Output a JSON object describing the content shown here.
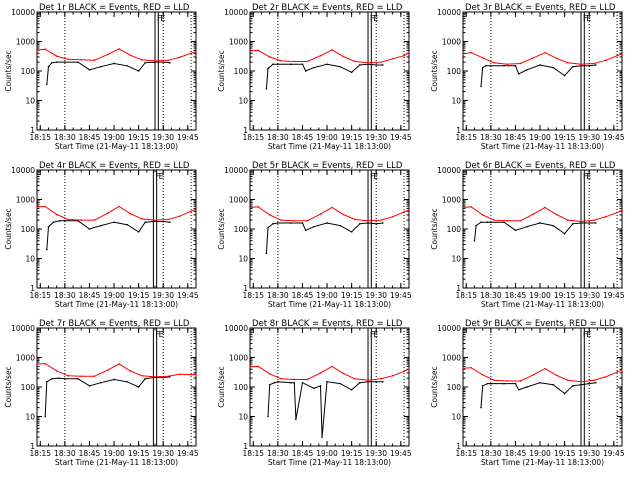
{
  "figure": {
    "x_tick_labels": [
      "18:15",
      "18:30",
      "18:45",
      "19:00",
      "19:15",
      "19:30",
      "19:45"
    ],
    "y_tick_labels": [
      "1",
      "10",
      "100",
      "1000",
      "10000"
    ],
    "ylabel": "Counts/sec",
    "xlabel": "Start Time (21-May-11 18:13:00)",
    "flag_labels": [
      "F",
      "E"
    ]
  },
  "colors": {
    "events": "#000000",
    "lld": "#ff0000",
    "axes": "#000000",
    "background": "#ffffff"
  },
  "chart_data": [
    {
      "type": "line",
      "title": "Det 1r BLACK = Events, RED = LLD",
      "xlabel": "Start Time (21-May-11 18:13:00)",
      "ylabel": "Counts/sec",
      "yscale": "log",
      "xlim": [
        "18:13",
        "19:50"
      ],
      "ylim": [
        1,
        10000
      ],
      "grid": false,
      "markers": {
        "dotted_vertical_lines": [
          "18:30",
          "19:30",
          "19:47"
        ],
        "flag_lines": [
          "19:25",
          "19:27"
        ]
      },
      "series": [
        {
          "name": "Events",
          "x": [
            "18:19",
            "18:20",
            "18:22",
            "18:25",
            "18:30",
            "18:38",
            "18:45",
            "18:52",
            "19:00",
            "19:08",
            "19:15",
            "19:19",
            "19:25",
            "19:30",
            "19:34"
          ],
          "values": [
            35,
            140,
            190,
            200,
            200,
            200,
            110,
            140,
            180,
            150,
            100,
            190,
            200,
            200,
            190
          ]
        },
        {
          "name": "LLD",
          "x": [
            "18:13",
            "18:18",
            "18:25",
            "18:32",
            "18:40",
            "18:48",
            "18:56",
            "19:03",
            "19:10",
            "19:17",
            "19:25",
            "19:33",
            "19:40",
            "19:47",
            "19:50"
          ],
          "values": [
            510,
            550,
            320,
            250,
            240,
            230,
            360,
            560,
            340,
            240,
            220,
            230,
            290,
            400,
            450
          ]
        }
      ]
    },
    {
      "type": "line",
      "title": "Det 2r BLACK = Events, RED = LLD",
      "xlabel": "Start Time (21-May-11 18:13:00)",
      "ylabel": "Counts/sec",
      "yscale": "log",
      "xlim": [
        "18:13",
        "19:50"
      ],
      "ylim": [
        1,
        10000
      ],
      "grid": false,
      "markers": {
        "dotted_vertical_lines": [
          "18:30",
          "19:30",
          "19:47"
        ],
        "flag_lines": [
          "19:25",
          "19:27"
        ]
      },
      "series": [
        {
          "name": "Events",
          "x": [
            "18:23",
            "18:24",
            "18:27",
            "18:30",
            "18:38",
            "18:45",
            "18:47",
            "18:52",
            "19:00",
            "19:08",
            "19:15",
            "19:20",
            "19:25",
            "19:30",
            "19:34"
          ],
          "values": [
            25,
            120,
            170,
            170,
            170,
            170,
            100,
            130,
            170,
            140,
            90,
            160,
            170,
            160,
            160
          ]
        },
        {
          "name": "LLD",
          "x": [
            "18:13",
            "18:18",
            "18:25",
            "18:32",
            "18:40",
            "18:48",
            "18:56",
            "19:03",
            "19:10",
            "19:17",
            "19:25",
            "19:33",
            "19:40",
            "19:47",
            "19:50"
          ],
          "values": [
            480,
            500,
            300,
            220,
            210,
            210,
            330,
            520,
            310,
            210,
            190,
            200,
            260,
            330,
            420
          ]
        }
      ]
    },
    {
      "type": "line",
      "title": "Det 3r BLACK = Events, RED = LLD",
      "xlabel": "Start Time (21-May-11 18:13:00)",
      "ylabel": "Counts/sec",
      "yscale": "log",
      "xlim": [
        "18:13",
        "19:50"
      ],
      "ylim": [
        1,
        10000
      ],
      "grid": false,
      "markers": {
        "dotted_vertical_lines": [
          "18:30",
          "19:30",
          "19:47"
        ],
        "flag_lines": [
          "19:25",
          "19:27"
        ]
      },
      "series": [
        {
          "name": "Events",
          "x": [
            "18:24",
            "18:25",
            "18:27",
            "18:30",
            "18:38",
            "18:45",
            "18:47",
            "18:52",
            "19:00",
            "19:08",
            "19:15",
            "19:20",
            "19:25",
            "19:30",
            "19:34"
          ],
          "values": [
            30,
            130,
            150,
            150,
            150,
            150,
            80,
            110,
            160,
            130,
            70,
            140,
            150,
            150,
            160
          ]
        },
        {
          "name": "LLD",
          "x": [
            "18:13",
            "18:18",
            "18:25",
            "18:32",
            "18:40",
            "18:48",
            "18:56",
            "19:03",
            "19:10",
            "19:17",
            "19:25",
            "19:33",
            "19:40",
            "19:47",
            "19:50"
          ],
          "values": [
            380,
            420,
            280,
            190,
            170,
            180,
            280,
            420,
            270,
            190,
            170,
            180,
            230,
            330,
            380
          ]
        }
      ]
    },
    {
      "type": "line",
      "title": "Det 4r BLACK = Events, RED = LLD",
      "xlabel": "Start Time (21-May-11 18:13:00)",
      "ylabel": "Counts/sec",
      "yscale": "log",
      "xlim": [
        "18:13",
        "19:50"
      ],
      "ylim": [
        1,
        10000
      ],
      "grid": false,
      "markers": {
        "dotted_vertical_lines": [
          "18:30",
          "19:30",
          "19:47"
        ],
        "flag_lines": [
          "19:24",
          "19:26"
        ]
      },
      "series": [
        {
          "name": "Events",
          "x": [
            "18:19",
            "18:20",
            "18:23",
            "18:27",
            "18:30",
            "18:38",
            "18:45",
            "18:52",
            "19:00",
            "19:08",
            "19:15",
            "19:19",
            "19:24",
            "19:30",
            "19:34"
          ],
          "values": [
            20,
            120,
            170,
            190,
            190,
            190,
            100,
            130,
            170,
            140,
            80,
            170,
            180,
            180,
            170
          ]
        },
        {
          "name": "LLD",
          "x": [
            "18:13",
            "18:18",
            "18:25",
            "18:32",
            "18:40",
            "18:48",
            "18:56",
            "19:03",
            "19:10",
            "19:17",
            "19:25",
            "19:33",
            "19:40",
            "19:47",
            "19:50"
          ],
          "values": [
            560,
            580,
            310,
            210,
            200,
            200,
            340,
            580,
            330,
            220,
            200,
            210,
            270,
            400,
            460
          ]
        }
      ]
    },
    {
      "type": "line",
      "title": "Det 5r BLACK = Events, RED = LLD",
      "xlabel": "Start Time (21-May-11 18:13:00)",
      "ylabel": "Counts/sec",
      "yscale": "log",
      "xlim": [
        "18:13",
        "19:50"
      ],
      "ylim": [
        1,
        10000
      ],
      "grid": false,
      "markers": {
        "dotted_vertical_lines": [
          "18:30",
          "19:30",
          "19:47"
        ],
        "flag_lines": [
          "19:25",
          "19:27"
        ]
      },
      "series": [
        {
          "name": "Events",
          "x": [
            "18:23",
            "18:24",
            "18:27",
            "18:30",
            "18:38",
            "18:45",
            "18:47",
            "18:52",
            "19:00",
            "19:08",
            "19:15",
            "19:20",
            "19:25",
            "19:30",
            "19:34"
          ],
          "values": [
            15,
            110,
            150,
            160,
            160,
            160,
            90,
            120,
            160,
            130,
            80,
            150,
            160,
            150,
            160
          ]
        },
        {
          "name": "LLD",
          "x": [
            "18:13",
            "18:18",
            "18:25",
            "18:32",
            "18:40",
            "18:48",
            "18:56",
            "19:03",
            "19:10",
            "19:17",
            "19:25",
            "19:33",
            "19:40",
            "19:47",
            "19:50"
          ],
          "values": [
            540,
            560,
            300,
            200,
            190,
            190,
            320,
            540,
            310,
            210,
            190,
            200,
            260,
            380,
            440
          ]
        }
      ]
    },
    {
      "type": "line",
      "title": "Det 6r BLACK = Events, RED = LLD",
      "xlabel": "Start Time (21-May-11 18:13:00)",
      "ylabel": "Counts/sec",
      "yscale": "log",
      "xlim": [
        "18:13",
        "19:50"
      ],
      "ylim": [
        1,
        10000
      ],
      "grid": false,
      "markers": {
        "dotted_vertical_lines": [
          "18:30",
          "19:30",
          "19:47"
        ],
        "flag_lines": [
          "19:25",
          "19:27"
        ]
      },
      "series": [
        {
          "name": "Events",
          "x": [
            "18:20",
            "18:21",
            "18:24",
            "18:28",
            "18:30",
            "18:38",
            "18:45",
            "18:52",
            "19:00",
            "19:08",
            "19:15",
            "19:20",
            "19:25",
            "19:30",
            "19:34"
          ],
          "values": [
            40,
            130,
            170,
            170,
            170,
            170,
            90,
            120,
            160,
            130,
            70,
            150,
            160,
            160,
            160
          ]
        },
        {
          "name": "LLD",
          "x": [
            "18:13",
            "18:18",
            "18:25",
            "18:32",
            "18:40",
            "18:48",
            "18:56",
            "19:03",
            "19:10",
            "19:17",
            "19:25",
            "19:33",
            "19:40",
            "19:47",
            "19:50"
          ],
          "values": [
            540,
            560,
            300,
            200,
            190,
            190,
            320,
            540,
            310,
            200,
            180,
            200,
            260,
            360,
            440
          ]
        }
      ]
    },
    {
      "type": "line",
      "title": "Det 7r BLACK = Events, RED = LLD",
      "xlabel": "Start Time (21-May-11 18:13:00)",
      "ylabel": "Counts/sec",
      "yscale": "log",
      "xlim": [
        "18:13",
        "19:50"
      ],
      "ylim": [
        1,
        10000
      ],
      "grid": false,
      "markers": {
        "dotted_vertical_lines": [
          "18:30",
          "19:30",
          "19:47"
        ],
        "flag_lines": [
          "19:24",
          "19:26"
        ]
      },
      "series": [
        {
          "name": "Events",
          "x": [
            "18:18",
            "18:19",
            "18:22",
            "18:26",
            "18:30",
            "18:38",
            "18:45",
            "18:52",
            "19:00",
            "19:08",
            "19:15",
            "19:19",
            "19:24",
            "19:30",
            "19:34"
          ],
          "values": [
            10,
            150,
            190,
            200,
            190,
            190,
            110,
            140,
            180,
            150,
            100,
            190,
            210,
            210,
            220
          ]
        },
        {
          "name": "LLD",
          "x": [
            "18:13",
            "18:18",
            "18:25",
            "18:32",
            "18:40",
            "18:48",
            "18:56",
            "19:03",
            "19:10",
            "19:17",
            "19:25",
            "19:33",
            "19:40",
            "19:47",
            "19:50"
          ],
          "values": [
            600,
            620,
            350,
            240,
            230,
            230,
            370,
            600,
            350,
            240,
            220,
            230,
            270,
            260,
            270
          ]
        }
      ]
    },
    {
      "type": "line",
      "title": "Det 8r BLACK = Events, RED = LLD",
      "xlabel": "Start Time (21-May-11 18:13:00)",
      "ylabel": "Counts/sec",
      "yscale": "log",
      "xlim": [
        "18:13",
        "19:50"
      ],
      "ylim": [
        1,
        10000
      ],
      "grid": false,
      "markers": {
        "dotted_vertical_lines": [
          "18:30",
          "19:30",
          "19:47"
        ],
        "flag_lines": [
          "19:25",
          "19:27"
        ]
      },
      "series": [
        {
          "name": "Events",
          "x": [
            "18:24",
            "18:25",
            "18:28",
            "18:30",
            "18:38",
            "18:40",
            "18:41",
            "18:45",
            "18:52",
            "18:56",
            "18:57",
            "19:00",
            "19:08",
            "19:15",
            "19:20",
            "19:25",
            "19:30",
            "19:34"
          ],
          "values": [
            10,
            120,
            140,
            150,
            140,
            140,
            8,
            140,
            90,
            110,
            2,
            150,
            130,
            80,
            140,
            150,
            150,
            150
          ]
        },
        {
          "name": "LLD",
          "x": [
            "18:13",
            "18:18",
            "18:25",
            "18:32",
            "18:40",
            "18:48",
            "18:56",
            "19:03",
            "19:10",
            "19:17",
            "19:25",
            "19:33",
            "19:40",
            "19:47",
            "19:50"
          ],
          "values": [
            480,
            500,
            280,
            190,
            180,
            180,
            300,
            500,
            290,
            190,
            170,
            190,
            240,
            340,
            400
          ]
        }
      ]
    },
    {
      "type": "line",
      "title": "Det 9r BLACK = Events, RED = LLD",
      "xlabel": "Start Time (21-May-11 18:13:00)",
      "ylabel": "Counts/sec",
      "yscale": "log",
      "xlim": [
        "18:13",
        "19:50"
      ],
      "ylim": [
        1,
        10000
      ],
      "grid": false,
      "markers": {
        "dotted_vertical_lines": [
          "18:30",
          "19:30",
          "19:47"
        ],
        "flag_lines": [
          "19:25",
          "19:27"
        ]
      },
      "series": [
        {
          "name": "Events",
          "x": [
            "18:24",
            "18:25",
            "18:28",
            "18:30",
            "18:38",
            "18:45",
            "18:47",
            "18:52",
            "19:00",
            "19:08",
            "19:15",
            "19:20",
            "19:25",
            "19:30",
            "19:34"
          ],
          "values": [
            20,
            110,
            130,
            130,
            130,
            130,
            80,
            100,
            140,
            120,
            60,
            110,
            120,
            130,
            140
          ]
        },
        {
          "name": "LLD",
          "x": [
            "18:13",
            "18:18",
            "18:25",
            "18:32",
            "18:40",
            "18:48",
            "18:56",
            "19:03",
            "19:10",
            "19:17",
            "19:25",
            "19:33",
            "19:40",
            "19:47",
            "19:50"
          ],
          "values": [
            430,
            450,
            260,
            170,
            160,
            160,
            260,
            420,
            250,
            170,
            150,
            170,
            220,
            320,
            380
          ]
        }
      ]
    }
  ]
}
